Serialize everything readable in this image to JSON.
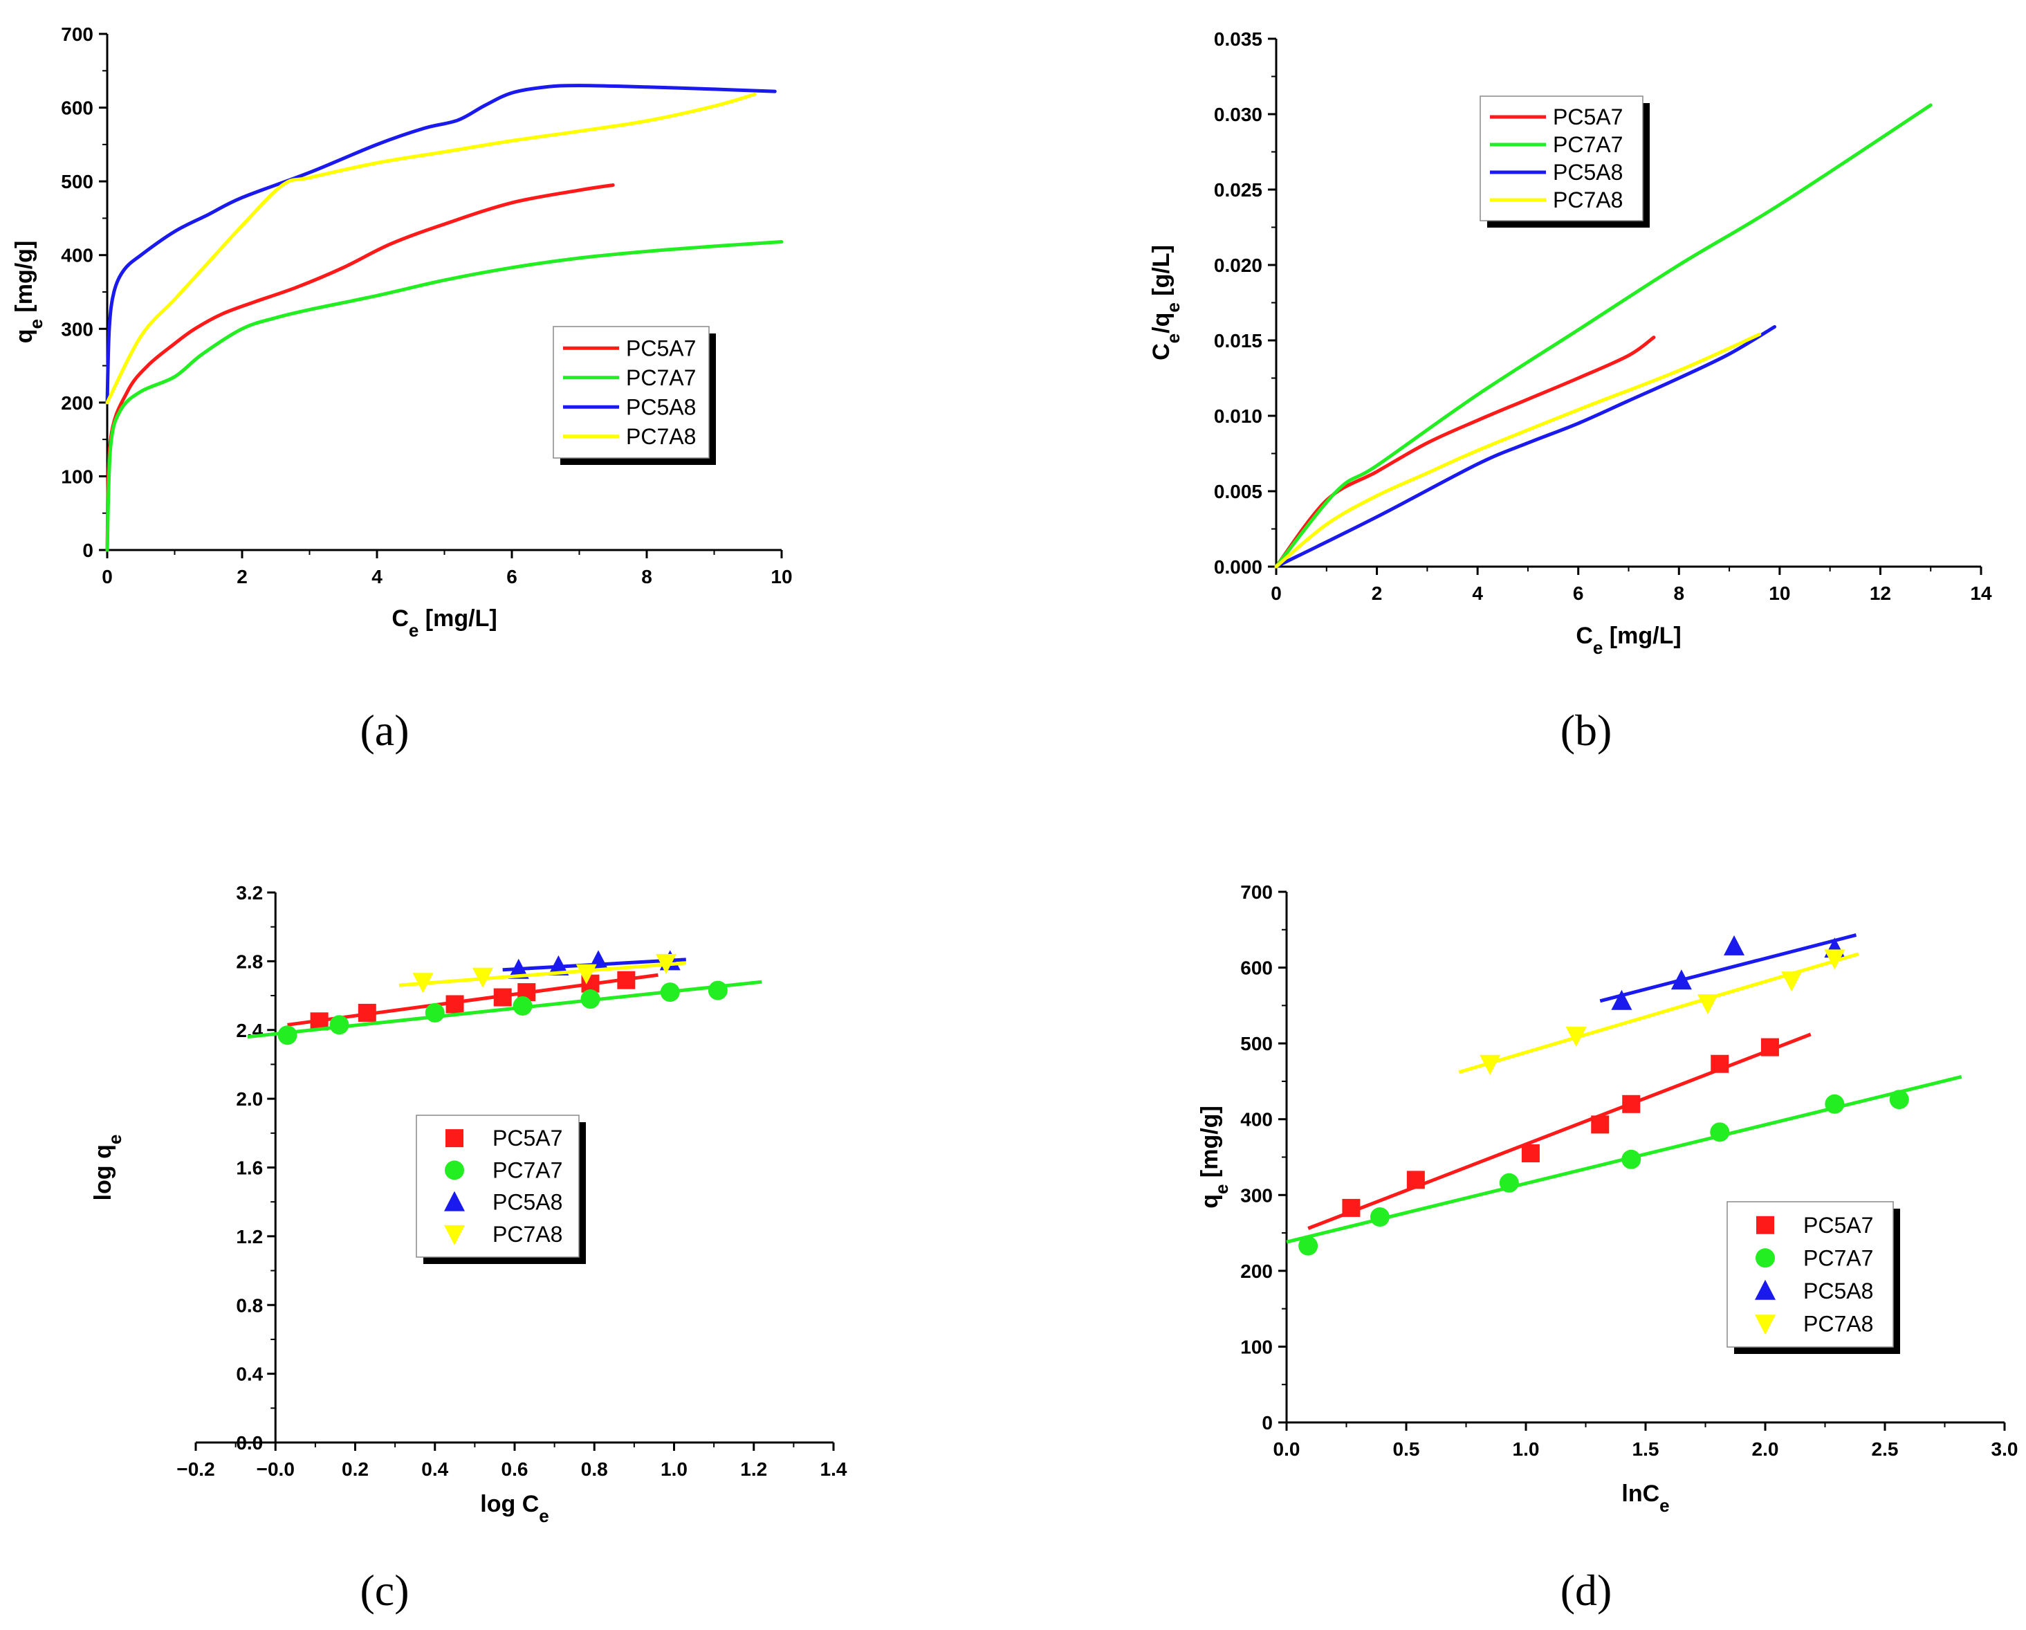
{
  "series_colors": {
    "PC5A7": "#ff1a1a",
    "PC7A7": "#22ee22",
    "PC5A8": "#1a1aee",
    "PC7A8": "#ffff00"
  },
  "chart_data": [
    {
      "panel": "(a)",
      "type": "line",
      "title": "",
      "xlabel": "C",
      "xlabel_sub": "e",
      "xlabel_unit": " [mg/L]",
      "ylabel": "q",
      "ylabel_sub": "e",
      "ylabel_unit": " [mg/g]",
      "xlim": [
        0,
        10
      ],
      "ylim": [
        0,
        700
      ],
      "xticks": [
        0,
        2,
        4,
        6,
        8,
        10
      ],
      "yticks": [
        0,
        100,
        200,
        300,
        400,
        500,
        600,
        700
      ],
      "tick_decimals": 0,
      "legend_position": "center-right",
      "series": [
        {
          "name": "PC5A7",
          "x": [
            0,
            0.05,
            0.3,
            0.6,
            1.0,
            1.3,
            1.7,
            2.2,
            2.8,
            3.5,
            4.2,
            5.0,
            6.0,
            7.0,
            7.5
          ],
          "y": [
            0,
            150,
            215,
            250,
            280,
            300,
            320,
            337,
            356,
            383,
            415,
            442,
            471,
            488,
            495
          ]
        },
        {
          "name": "PC7A7",
          "x": [
            0,
            0.05,
            0.2,
            0.5,
            1.0,
            1.4,
            2.0,
            2.5,
            3.0,
            4.0,
            5.0,
            6.0,
            7.0,
            8.0,
            9.0,
            10.0
          ],
          "y": [
            0,
            140,
            190,
            215,
            235,
            265,
            300,
            315,
            326,
            345,
            366,
            383,
            396,
            405,
            412,
            418
          ]
        },
        {
          "name": "PC5A8",
          "x": [
            0,
            0.03,
            0.1,
            0.25,
            0.5,
            1.0,
            1.5,
            2.0,
            3.0,
            4.0,
            4.7,
            5.2,
            5.6,
            6.0,
            6.5,
            7.0,
            8.0,
            9.0,
            9.9
          ],
          "y": [
            200,
            300,
            350,
            380,
            400,
            432,
            455,
            478,
            512,
            550,
            572,
            583,
            603,
            620,
            628,
            630,
            628,
            625,
            622
          ]
        },
        {
          "name": "PC7A8",
          "x": [
            0,
            0.5,
            1.0,
            1.5,
            2.0,
            2.6,
            3.0,
            4.0,
            5.0,
            6.0,
            7.0,
            8.0,
            9.0,
            9.6
          ],
          "y": [
            200,
            290,
            340,
            390,
            440,
            495,
            505,
            525,
            540,
            555,
            568,
            582,
            602,
            618
          ]
        }
      ]
    },
    {
      "panel": "(b)",
      "type": "line",
      "title": "",
      "xlabel": "C",
      "xlabel_sub": "e",
      "xlabel_unit": " [mg/L]",
      "ylabel": "C",
      "ylabel_sub": "e",
      "ylabel_mid": "/q",
      "ylabel_sub2": "e",
      "ylabel_unit": " [g/L]",
      "xlim": [
        0,
        14
      ],
      "ylim": [
        0,
        0.035
      ],
      "xticks": [
        0,
        2,
        4,
        6,
        8,
        10,
        12,
        14
      ],
      "yticks": [
        0,
        0.005,
        0.01,
        0.015,
        0.02,
        0.025,
        0.03,
        0.035
      ],
      "tick_decimals_x": 0,
      "tick_decimals_y": 3,
      "legend_position": "top-left",
      "series": [
        {
          "name": "PC5A7",
          "x": [
            0,
            1.0,
            2.0,
            3.0,
            4.0,
            5.0,
            6.0,
            7.0,
            7.5
          ],
          "y": [
            0,
            0.0044,
            0.0063,
            0.0082,
            0.0097,
            0.0111,
            0.0125,
            0.014,
            0.0152
          ]
        },
        {
          "name": "PC7A7",
          "x": [
            0,
            1.2,
            2.0,
            4.0,
            6.0,
            8.0,
            10.0,
            13.0
          ],
          "y": [
            0,
            0.005,
            0.0067,
            0.0114,
            0.0157,
            0.02,
            0.024,
            0.0306
          ]
        },
        {
          "name": "PC5A8",
          "x": [
            0,
            2.0,
            4.0,
            5.0,
            6.0,
            7.0,
            8.0,
            9.0,
            9.9
          ],
          "y": [
            0,
            0.0033,
            0.0068,
            0.0082,
            0.0095,
            0.011,
            0.0125,
            0.0141,
            0.0159
          ]
        },
        {
          "name": "PC7A8",
          "x": [
            0,
            1.0,
            2.0,
            3.0,
            4.0,
            6.0,
            8.0,
            9.6
          ],
          "y": [
            0,
            0.0028,
            0.0047,
            0.0062,
            0.0077,
            0.0104,
            0.013,
            0.0154
          ]
        }
      ]
    },
    {
      "panel": "(c)",
      "type": "scatter",
      "title": "",
      "xlabel": "log C",
      "xlabel_sub": "e",
      "xlabel_unit": "",
      "ylabel": "log q",
      "ylabel_sub": "e",
      "ylabel_unit": "",
      "xlim": [
        -0.2,
        1.4
      ],
      "ylim": [
        0,
        3.2
      ],
      "xticks": [
        -0.2,
        0,
        0.2,
        0.4,
        0.6,
        0.8,
        1.0,
        1.2,
        1.4
      ],
      "xtick_labels": [
        "−0.2",
        "−0.0",
        "0.2",
        "0.4",
        "0.6",
        "0.8",
        "1.0",
        "1.2",
        "1.4"
      ],
      "yticks": [
        0,
        0.4,
        0.8,
        1.2,
        1.6,
        2.0,
        2.4,
        2.8,
        3.2
      ],
      "ytick_labels": [
        "0.0",
        "0.4",
        "0.8",
        "1.2",
        "1.6",
        "2.0",
        "2.4",
        "2.8",
        "3.2"
      ],
      "legend_position": "center",
      "series": [
        {
          "name": "PC5A7",
          "marker": "square",
          "x": [
            0.11,
            0.23,
            0.45,
            0.57,
            0.63,
            0.79,
            0.88
          ],
          "y": [
            2.45,
            2.5,
            2.55,
            2.59,
            2.62,
            2.67,
            2.69
          ],
          "fit_x": [
            0.03,
            0.96
          ],
          "fit_y": [
            2.43,
            2.72
          ]
        },
        {
          "name": "PC7A7",
          "marker": "circle",
          "x": [
            0.03,
            0.16,
            0.4,
            0.62,
            0.79,
            0.99,
            1.11
          ],
          "y": [
            2.37,
            2.43,
            2.5,
            2.54,
            2.58,
            2.62,
            2.63
          ],
          "fit_x": [
            -0.07,
            1.22
          ],
          "fit_y": [
            2.36,
            2.68
          ]
        },
        {
          "name": "PC5A8",
          "marker": "triangle-up",
          "x": [
            0.61,
            0.71,
            0.81,
            0.99
          ],
          "y": [
            2.75,
            2.77,
            2.8,
            2.8
          ],
          "fit_x": [
            0.57,
            1.03
          ],
          "fit_y": [
            2.75,
            2.81
          ]
        },
        {
          "name": "PC7A8",
          "marker": "triangle-down",
          "x": [
            0.37,
            0.52,
            0.78,
            0.98
          ],
          "y": [
            2.68,
            2.71,
            2.73,
            2.79
          ],
          "fit_x": [
            0.31,
            1.03
          ],
          "fit_y": [
            2.66,
            2.79
          ]
        }
      ]
    },
    {
      "panel": "(d)",
      "type": "scatter",
      "title": "",
      "xlabel": "lnC",
      "xlabel_sub": "e",
      "xlabel_unit": "",
      "ylabel": "q",
      "ylabel_sub": "e",
      "ylabel_unit": " [mg/g]",
      "xlim": [
        0,
        3.0
      ],
      "ylim": [
        0,
        700
      ],
      "xticks": [
        0,
        0.5,
        1.0,
        1.5,
        2.0,
        2.5,
        3.0
      ],
      "xtick_labels": [
        "0.0",
        "0.5",
        "1.0",
        "1.5",
        "2.0",
        "2.5",
        "3.0"
      ],
      "yticks": [
        0,
        100,
        200,
        300,
        400,
        500,
        600,
        700
      ],
      "ytick_labels": [
        "0",
        "100",
        "200",
        "300",
        "400",
        "500",
        "600",
        "700"
      ],
      "legend_position": "bottom-right",
      "series": [
        {
          "name": "PC5A7",
          "marker": "square",
          "x": [
            0.27,
            0.54,
            1.02,
            1.31,
            1.44,
            1.81,
            2.02
          ],
          "y": [
            283,
            320,
            355,
            393,
            420,
            473,
            495
          ],
          "fit_x": [
            0.09,
            2.19
          ],
          "fit_y": [
            256,
            512
          ]
        },
        {
          "name": "PC7A7",
          "marker": "circle",
          "x": [
            0.09,
            0.39,
            0.93,
            1.44,
            1.81,
            2.29,
            2.56
          ],
          "y": [
            233,
            271,
            316,
            347,
            383,
            420,
            426
          ],
          "fit_x": [
            0.0,
            2.82
          ],
          "fit_y": [
            238,
            456
          ]
        },
        {
          "name": "PC5A8",
          "marker": "triangle-up",
          "x": [
            1.4,
            1.65,
            1.87,
            2.29
          ],
          "y": [
            556,
            583,
            628,
            625
          ],
          "fit_x": [
            1.31,
            2.38
          ],
          "fit_y": [
            556,
            643
          ]
        },
        {
          "name": "PC7A8",
          "marker": "triangle-down",
          "x": [
            0.85,
            1.21,
            1.76,
            2.11,
            2.29
          ],
          "y": [
            473,
            510,
            553,
            583,
            612
          ],
          "fit_x": [
            0.72,
            2.39
          ],
          "fit_y": [
            462,
            618
          ]
        }
      ]
    }
  ]
}
